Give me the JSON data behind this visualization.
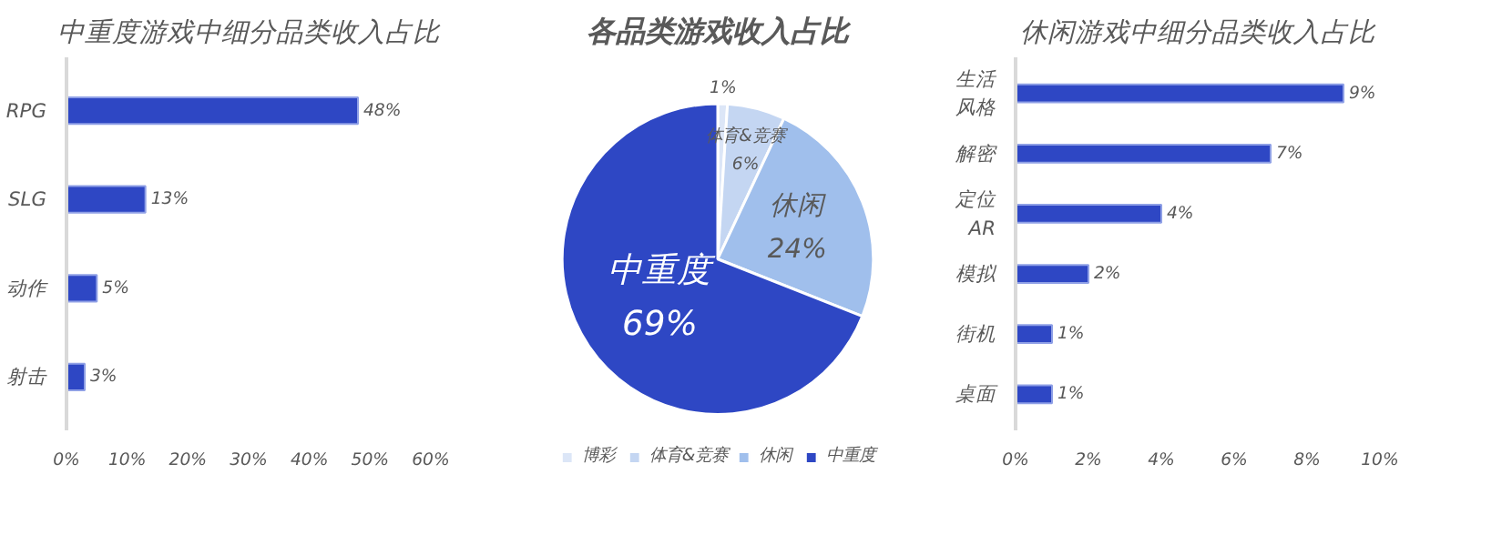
{
  "chart_data": [
    {
      "type": "bar",
      "orientation": "horizontal",
      "title": "中重度游戏中细分品类收入占比",
      "categories": [
        "RPG",
        "SLG",
        "动作",
        "射击"
      ],
      "values": [
        48,
        13,
        5,
        3
      ],
      "color": "#2e47c4",
      "value_labels": [
        "48%",
        "13%",
        "5%",
        "3%"
      ],
      "xlim": [
        0,
        60
      ],
      "xticks": [
        {
          "value": 0,
          "label": "0%"
        },
        {
          "value": 10,
          "label": "10%"
        },
        {
          "value": 20,
          "label": "20%"
        },
        {
          "value": 30,
          "label": "30%"
        },
        {
          "value": 40,
          "label": "40%"
        },
        {
          "value": 50,
          "label": "50%"
        },
        {
          "value": 60,
          "label": "60%"
        }
      ],
      "grid": false
    },
    {
      "type": "pie",
      "title": "各品类游戏收入占比",
      "categories": [
        "博彩",
        "体育&竞赛",
        "休闲",
        "中重度"
      ],
      "values": [
        1,
        6,
        24,
        69
      ],
      "colors": [
        "#dce6f7",
        "#c4d6f2",
        "#a0bfec",
        "#2e47c4"
      ],
      "value_labels": [
        "1%",
        "体育&竞赛\n6%",
        "休闲\n24%",
        "中重度\n69%"
      ],
      "legend": "bottom"
    },
    {
      "type": "bar",
      "orientation": "horizontal",
      "title": "休闲游戏中细分品类收入占比",
      "categories": [
        "生活风格",
        "解密",
        "定位AR",
        "模拟",
        "街机",
        "桌面"
      ],
      "values": [
        9,
        7,
        4,
        2,
        1,
        1
      ],
      "color": "#2e47c4",
      "value_labels": [
        "9%",
        "7%",
        "4%",
        "2%",
        "1%",
        "1%"
      ],
      "xlim": [
        0,
        10
      ],
      "xticks": [
        {
          "value": 0,
          "label": "0%"
        },
        {
          "value": 2,
          "label": "2%"
        },
        {
          "value": 4,
          "label": "4%"
        },
        {
          "value": 6,
          "label": "6%"
        },
        {
          "value": 8,
          "label": "8%"
        },
        {
          "value": 10,
          "label": "10%"
        }
      ],
      "grid": false
    }
  ]
}
